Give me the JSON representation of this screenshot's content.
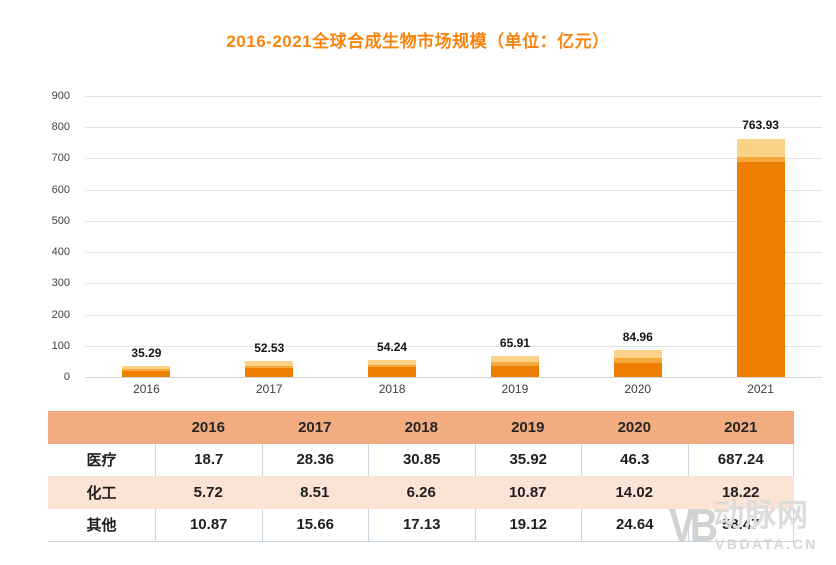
{
  "chart_data": {
    "type": "bar",
    "stacked": true,
    "title": "2016-2021全球合成生物市场规模（单位：亿元）",
    "categories": [
      "2016",
      "2017",
      "2018",
      "2019",
      "2020",
      "2021"
    ],
    "series": [
      {
        "name": "医疗",
        "color": "#EE7E00",
        "values": [
          18.7,
          28.36,
          30.85,
          35.92,
          46.3,
          687.24
        ]
      },
      {
        "name": "化工",
        "color": "#F6A83C",
        "values": [
          5.72,
          8.51,
          6.26,
          10.87,
          14.02,
          18.22
        ]
      },
      {
        "name": "其他",
        "color": "#FAD389",
        "values": [
          10.87,
          15.66,
          17.13,
          19.12,
          24.64,
          58.47
        ]
      }
    ],
    "totals": [
      "35.29",
      "52.53",
      "54.24",
      "65.91",
      "84.96",
      "763.93"
    ],
    "ylim": [
      0,
      900
    ],
    "ytick_step": 100,
    "grid": true,
    "legend": "none"
  },
  "table": {
    "header": [
      "",
      "2016",
      "2017",
      "2018",
      "2019",
      "2020",
      "2021"
    ],
    "rows": [
      {
        "label": "医疗",
        "values": [
          "18.7",
          "28.36",
          "30.85",
          "35.92",
          "46.3",
          "687.24"
        ]
      },
      {
        "label": "化工",
        "values": [
          "5.72",
          "8.51",
          "6.26",
          "10.87",
          "14.02",
          "18.22"
        ]
      },
      {
        "label": "其他",
        "values": [
          "10.87",
          "15.66",
          "17.13",
          "19.12",
          "24.64",
          "58.47"
        ]
      }
    ]
  },
  "watermark": {
    "logo": "VB",
    "name": "动脉网",
    "domain": "VBDATA.CN"
  },
  "colors": {
    "title": "#F8840E",
    "table_header_bg": "#F2AC80",
    "row_alt_bg": "#FBE3D6",
    "bar_medical": "#EE7E00",
    "bar_chemical": "#F6A83C",
    "bar_other": "#FAD389"
  }
}
